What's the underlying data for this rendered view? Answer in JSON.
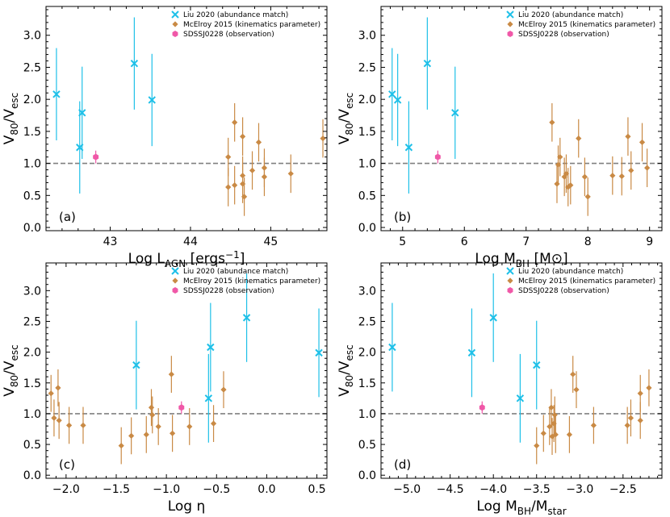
{
  "colors": {
    "liu": "#1ec0e8",
    "mcelroy": "#c98a45",
    "sdss": "#f058a8",
    "reference_line": "#808080"
  },
  "legend_labels": {
    "liu": "Liu 2020 (abundance match)",
    "mcelroy": "McElroy 2015 (kinematics parameter)",
    "sdss": "SDSSJ0228 (observation)"
  },
  "ylabel": {
    "main": "V",
    "sub1": "80",
    "mid": "/V",
    "sub2": "esc"
  },
  "chart_data": [
    {
      "type": "scatter",
      "panel_label": "(a)",
      "xlabel": {
        "pre": "Log L",
        "sub": "AGN",
        "post": " [ergs",
        "sup": "−1",
        "end": "]"
      },
      "xlim": [
        42.2,
        45.7
      ],
      "ylim": [
        -0.05,
        3.45
      ],
      "xticks": [
        43,
        44,
        45
      ],
      "xtick_labels": [
        "43",
        "44",
        "45"
      ],
      "yticks": [
        0.0,
        0.5,
        1.0,
        1.5,
        2.0,
        2.5,
        3.0
      ],
      "ytick_labels": [
        "0.0",
        "0.5",
        "1.0",
        "1.5",
        "2.0",
        "2.5",
        "3.0"
      ],
      "reference_y": 1.0,
      "series": [
        {
          "name": "Liu 2020 (abundance match)",
          "key": "liu",
          "points": [
            [
              42.33,
              2.08,
              0.72
            ],
            [
              42.62,
              1.25,
              0.72
            ],
            [
              42.65,
              1.79,
              0.72
            ],
            [
              43.3,
              2.56,
              0.72
            ],
            [
              43.52,
              1.99,
              0.72
            ]
          ]
        },
        {
          "name": "McElroy 2015 (kinematics parameter)",
          "key": "mcelroy",
          "points": [
            [
              44.47,
              1.1,
              0.3
            ],
            [
              44.47,
              0.63,
              0.3
            ],
            [
              44.55,
              1.64,
              0.3
            ],
            [
              44.55,
              0.66,
              0.3
            ],
            [
              44.65,
              1.42,
              0.3
            ],
            [
              44.65,
              0.81,
              0.3
            ],
            [
              44.65,
              0.68,
              0.3
            ],
            [
              44.67,
              0.48,
              0.3
            ],
            [
              44.77,
              0.89,
              0.3
            ],
            [
              44.85,
              1.33,
              0.3
            ],
            [
              44.92,
              0.93,
              0.3
            ],
            [
              44.92,
              0.79,
              0.3
            ],
            [
              45.25,
              0.84,
              0.3
            ],
            [
              45.65,
              1.39,
              0.3
            ]
          ]
        },
        {
          "name": "SDSSJ0228 (observation)",
          "key": "sdss",
          "points": [
            [
              42.82,
              1.1,
              0.1
            ]
          ]
        }
      ]
    },
    {
      "type": "scatter",
      "panel_label": "(b)",
      "xlabel": {
        "pre": "Log M",
        "sub": "BH",
        "post": " [M",
        "sup": "",
        "end": "⊙]"
      },
      "xlim": [
        4.65,
        9.2
      ],
      "ylim": [
        -0.05,
        3.45
      ],
      "xticks": [
        5,
        6,
        7,
        8,
        9
      ],
      "xtick_labels": [
        "5",
        "6",
        "7",
        "8",
        "9"
      ],
      "yticks": [
        0.0,
        0.5,
        1.0,
        1.5,
        2.0,
        2.5,
        3.0
      ],
      "ytick_labels": [
        "0.0",
        "0.5",
        "1.0",
        "1.5",
        "2.0",
        "2.5",
        "3.0"
      ],
      "reference_y": 1.0,
      "series": [
        {
          "name": "Liu 2020 (abundance match)",
          "key": "liu",
          "points": [
            [
              4.83,
              2.08,
              0.72
            ],
            [
              4.92,
              1.99,
              0.72
            ],
            [
              5.1,
              1.25,
              0.72
            ],
            [
              5.4,
              2.56,
              0.72
            ],
            [
              5.85,
              1.79,
              0.72
            ]
          ]
        },
        {
          "name": "McElroy 2015 (kinematics parameter)",
          "key": "mcelroy",
          "points": [
            [
              7.42,
              1.64,
              0.3
            ],
            [
              7.5,
              0.68,
              0.3
            ],
            [
              7.52,
              0.98,
              0.3
            ],
            [
              7.55,
              1.1,
              0.3
            ],
            [
              7.62,
              0.79,
              0.3
            ],
            [
              7.65,
              0.84,
              0.3
            ],
            [
              7.68,
              0.63,
              0.3
            ],
            [
              7.72,
              0.66,
              0.3
            ],
            [
              7.85,
              1.39,
              0.3
            ],
            [
              7.95,
              0.79,
              0.3
            ],
            [
              8.0,
              0.48,
              0.3
            ],
            [
              8.4,
              0.81,
              0.3
            ],
            [
              8.55,
              0.8,
              0.3
            ],
            [
              8.65,
              1.42,
              0.3
            ],
            [
              8.7,
              0.89,
              0.3
            ],
            [
              8.88,
              1.33,
              0.3
            ],
            [
              8.96,
              0.93,
              0.3
            ]
          ]
        },
        {
          "name": "SDSSJ0228 (observation)",
          "key": "sdss",
          "points": [
            [
              5.57,
              1.1,
              0.1
            ]
          ]
        }
      ]
    },
    {
      "type": "scatter",
      "panel_label": "(c)",
      "xlabel": {
        "pre": "Log η",
        "sub": "",
        "post": "",
        "sup": "",
        "end": ""
      },
      "xlim": [
        -2.2,
        0.6
      ],
      "ylim": [
        -0.05,
        3.45
      ],
      "xticks": [
        -2.0,
        -1.5,
        -1.0,
        -0.5,
        0.0,
        0.5
      ],
      "xtick_labels": [
        "−2.0",
        "−1.5",
        "−1.0",
        "−0.5",
        "0.0",
        "0.5"
      ],
      "yticks": [
        0.0,
        0.5,
        1.0,
        1.5,
        2.0,
        2.5,
        3.0
      ],
      "ytick_labels": [
        "0.0",
        "0.5",
        "1.0",
        "1.5",
        "2.0",
        "2.5",
        "3.0"
      ],
      "reference_y": 1.0,
      "series": [
        {
          "name": "Liu 2020 (abundance match)",
          "key": "liu",
          "points": [
            [
              -1.3,
              1.79,
              0.72
            ],
            [
              -0.58,
              1.25,
              0.72
            ],
            [
              -0.56,
              2.08,
              0.72
            ],
            [
              -0.2,
              2.56,
              0.72
            ],
            [
              0.52,
              1.99,
              0.72
            ]
          ]
        },
        {
          "name": "McElroy 2015 (kinematics parameter)",
          "key": "mcelroy",
          "points": [
            [
              -2.15,
              1.33,
              0.3
            ],
            [
              -2.12,
              0.93,
              0.3
            ],
            [
              -2.08,
              1.42,
              0.3
            ],
            [
              -2.07,
              0.89,
              0.3
            ],
            [
              -1.97,
              0.81,
              0.3
            ],
            [
              -1.83,
              0.81,
              0.3
            ],
            [
              -1.45,
              0.48,
              0.3
            ],
            [
              -1.35,
              0.64,
              0.3
            ],
            [
              -1.2,
              0.66,
              0.3
            ],
            [
              -1.15,
              1.1,
              0.3
            ],
            [
              -1.14,
              0.98,
              0.3
            ],
            [
              -1.08,
              0.79,
              0.3
            ],
            [
              -0.95,
              1.64,
              0.3
            ],
            [
              -0.94,
              0.68,
              0.3
            ],
            [
              -0.77,
              0.79,
              0.3
            ],
            [
              -0.53,
              0.84,
              0.3
            ],
            [
              -0.43,
              1.39,
              0.3
            ]
          ]
        },
        {
          "name": "SDSSJ0228 (observation)",
          "key": "sdss",
          "points": [
            [
              -0.85,
              1.1,
              0.1
            ]
          ]
        }
      ]
    },
    {
      "type": "scatter",
      "panel_label": "(d)",
      "xlabel": {
        "pre": "Log M",
        "sub": "BH",
        "post": "/M",
        "sup": "",
        "end": "",
        "sub2": "star"
      },
      "xlim": [
        -5.3,
        -2.05
      ],
      "ylim": [
        -0.05,
        3.45
      ],
      "xticks": [
        -5.0,
        -4.5,
        -4.0,
        -3.5,
        -3.0,
        -2.5
      ],
      "xtick_labels": [
        "−5.0",
        "−4.5",
        "−4.0",
        "−3.5",
        "−3.0",
        "−2.5"
      ],
      "yticks": [
        0.0,
        0.5,
        1.0,
        1.5,
        2.0,
        2.5,
        3.0
      ],
      "ytick_labels": [
        "0.0",
        "0.5",
        "1.0",
        "1.5",
        "2.0",
        "2.5",
        "3.0"
      ],
      "reference_y": 1.0,
      "series": [
        {
          "name": "Liu 2020 (abundance match)",
          "key": "liu",
          "points": [
            [
              -5.17,
              2.08,
              0.72
            ],
            [
              -4.25,
              1.99,
              0.72
            ],
            [
              -4.0,
              2.56,
              0.72
            ],
            [
              -3.69,
              1.25,
              0.72
            ],
            [
              -3.5,
              1.79,
              0.72
            ]
          ]
        },
        {
          "name": "McElroy 2015 (kinematics parameter)",
          "key": "mcelroy",
          "points": [
            [
              -3.5,
              0.48,
              0.3
            ],
            [
              -3.42,
              0.68,
              0.3
            ],
            [
              -3.35,
              0.79,
              0.3
            ],
            [
              -3.33,
              1.1,
              0.3
            ],
            [
              -3.32,
              0.63,
              0.3
            ],
            [
              -3.3,
              0.84,
              0.3
            ],
            [
              -3.29,
              0.98,
              0.3
            ],
            [
              -3.28,
              0.66,
              0.3
            ],
            [
              -3.12,
              0.66,
              0.3
            ],
            [
              -3.08,
              1.64,
              0.3
            ],
            [
              -3.04,
              1.39,
              0.3
            ],
            [
              -2.84,
              0.81,
              0.3
            ],
            [
              -2.45,
              0.81,
              0.3
            ],
            [
              -2.41,
              0.93,
              0.3
            ],
            [
              -2.3,
              0.89,
              0.3
            ],
            [
              -2.3,
              1.33,
              0.3
            ],
            [
              -2.2,
              1.42,
              0.3
            ]
          ]
        },
        {
          "name": "SDSSJ0228 (observation)",
          "key": "sdss",
          "points": [
            [
              -4.13,
              1.1,
              0.1
            ]
          ]
        }
      ]
    }
  ]
}
